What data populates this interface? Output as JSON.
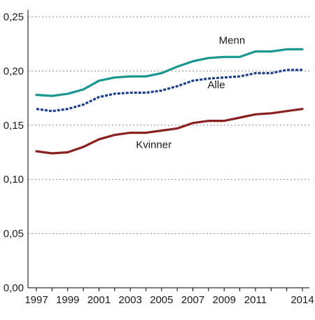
{
  "chart_data": {
    "type": "line",
    "title": "",
    "xlabel": "",
    "ylabel": "",
    "ylim": [
      0,
      0.25
    ],
    "y_ticks": [
      "0,00",
      "0,05",
      "0,10",
      "0,15",
      "0,20",
      "0,25"
    ],
    "y_tick_values": [
      0,
      0.05,
      0.1,
      0.15,
      0.2,
      0.25
    ],
    "x_ticks": [
      "1997",
      "1999",
      "2001",
      "2003",
      "2005",
      "2007",
      "2009",
      "2011",
      "2014"
    ],
    "x_tick_values": [
      1997,
      1999,
      2001,
      2003,
      2005,
      2007,
      2009,
      2011,
      2014
    ],
    "xlim": [
      1997,
      2014
    ],
    "grid": "horizontal dotted",
    "legend": "inline labels",
    "x": [
      1997,
      1998,
      1999,
      2000,
      2001,
      2002,
      2003,
      2004,
      2005,
      2006,
      2007,
      2008,
      2009,
      2010,
      2011,
      2012,
      2013,
      2014
    ],
    "series": [
      {
        "name": "Menn",
        "color": "#1a9790",
        "style": "solid",
        "label_at": [
          2009.5,
          0.225
        ],
        "values": [
          0.178,
          0.177,
          0.179,
          0.183,
          0.191,
          0.194,
          0.195,
          0.195,
          0.198,
          0.204,
          0.209,
          0.212,
          0.213,
          0.213,
          0.218,
          0.218,
          0.22,
          0.22
        ]
      },
      {
        "name": "Alle",
        "color": "#1c3c8c",
        "style": "dashed",
        "label_at": [
          2008.5,
          0.184
        ],
        "values": [
          0.165,
          0.163,
          0.165,
          0.169,
          0.176,
          0.179,
          0.18,
          0.18,
          0.182,
          0.186,
          0.191,
          0.193,
          0.194,
          0.195,
          0.198,
          0.198,
          0.201,
          0.201
        ]
      },
      {
        "name": "Kvinner",
        "color": "#8a2020",
        "style": "solid",
        "label_at": [
          2004.5,
          0.129
        ],
        "values": [
          0.126,
          0.124,
          0.125,
          0.13,
          0.137,
          0.141,
          0.143,
          0.143,
          0.145,
          0.147,
          0.152,
          0.154,
          0.154,
          0.157,
          0.16,
          0.161,
          0.163,
          0.165
        ]
      }
    ]
  }
}
